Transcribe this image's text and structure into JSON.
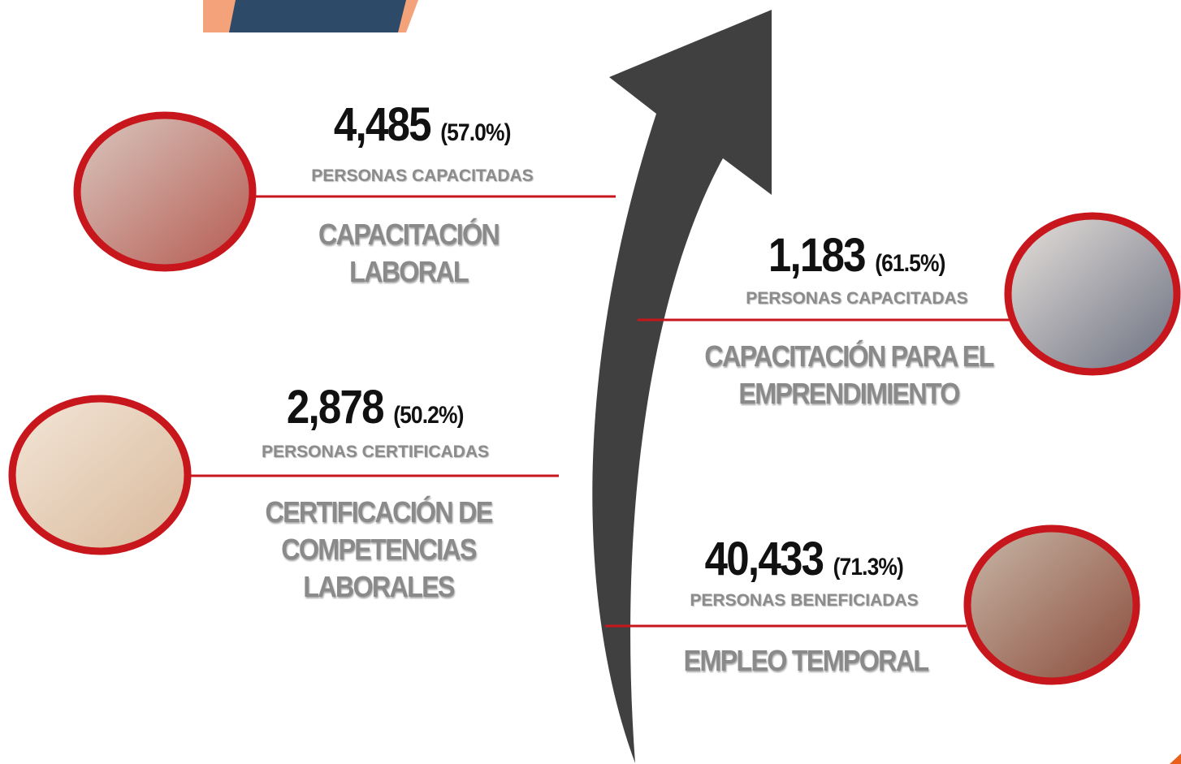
{
  "items": [
    {
      "number": "4,485",
      "percent": "(57.0%)",
      "label": "PERSONAS CAPACITADAS",
      "title": [
        "CAPACITACIÓN",
        "LABORAL"
      ]
    },
    {
      "number": "1,183",
      "percent": "(61.5%)",
      "label": "PERSONAS CAPACITADAS",
      "title": [
        "CAPACITACIÓN PARA EL",
        "EMPRENDIMIENTO"
      ]
    },
    {
      "number": "2,878",
      "percent": "(50.2%)",
      "label": "PERSONAS CERTIFICADAS",
      "title": [
        "CERTIFICACIÓN DE",
        "COMPETENCIAS",
        "LABORALES"
      ]
    },
    {
      "number": "40,433",
      "percent": "(71.3%)",
      "label": "PERSONAS BENEFICIADAS",
      "title": [
        "EMPLEO TEMPORAL"
      ]
    }
  ]
}
